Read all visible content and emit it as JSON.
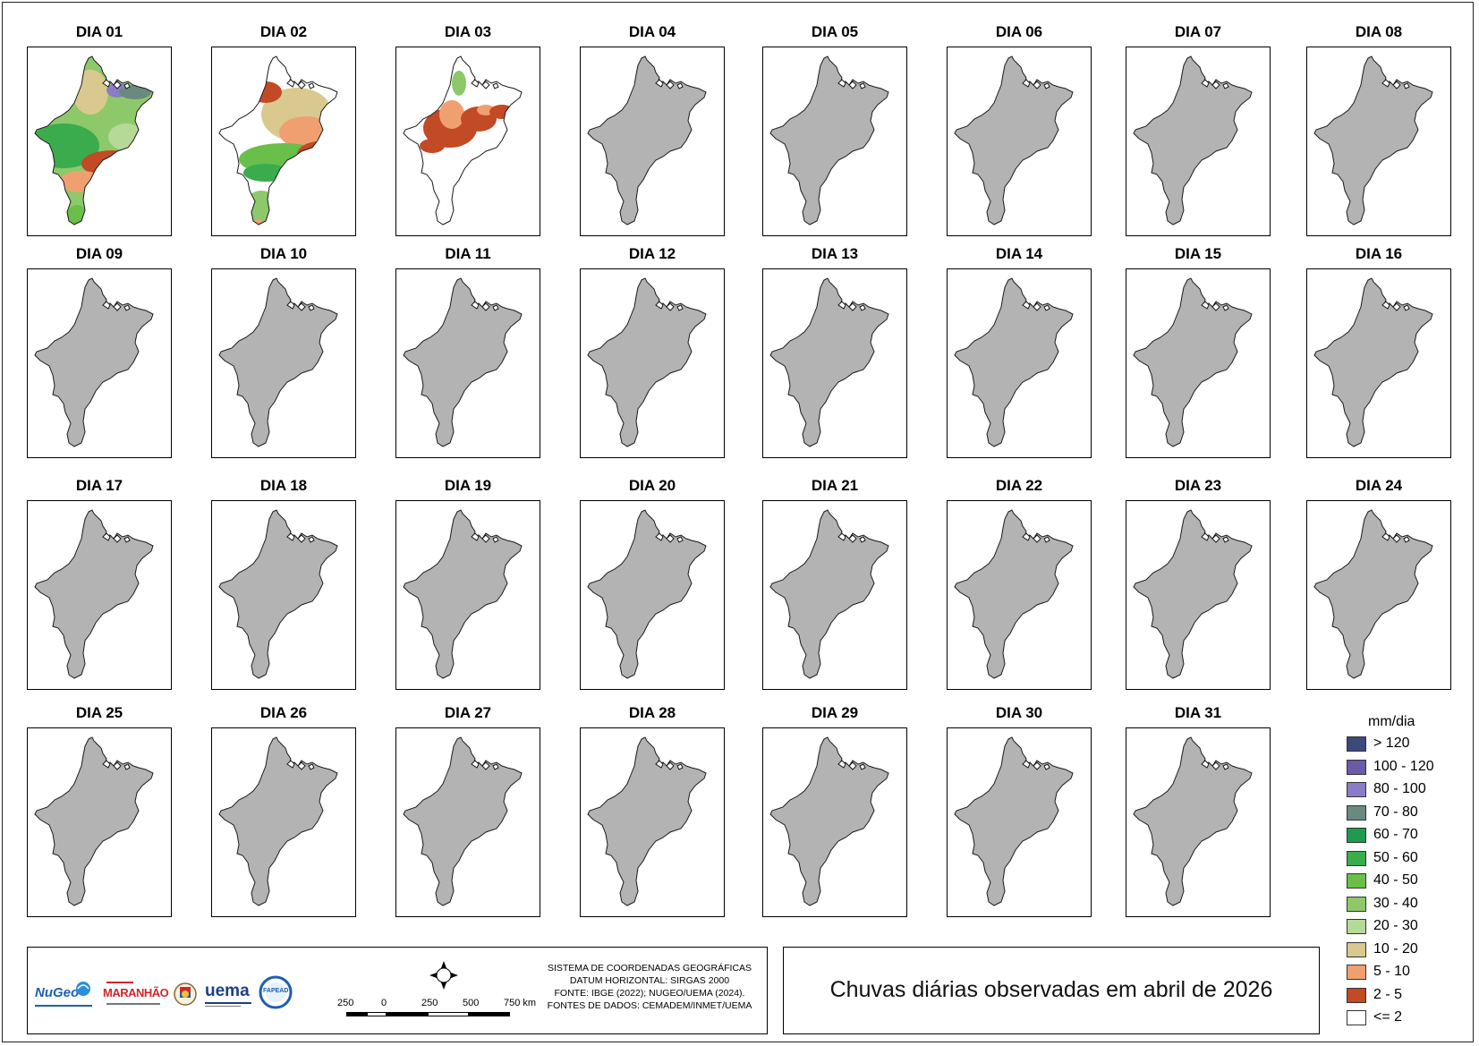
{
  "panels": [
    {
      "label": "DIA 01",
      "status": "data"
    },
    {
      "label": "DIA 02",
      "status": "data"
    },
    {
      "label": "DIA 03",
      "status": "data"
    },
    {
      "label": "DIA 04",
      "status": "nodata"
    },
    {
      "label": "DIA 05",
      "status": "nodata"
    },
    {
      "label": "DIA 06",
      "status": "nodata"
    },
    {
      "label": "DIA 07",
      "status": "nodata"
    },
    {
      "label": "DIA 08",
      "status": "nodata"
    },
    {
      "label": "DIA 09",
      "status": "nodata"
    },
    {
      "label": "DIA 10",
      "status": "nodata"
    },
    {
      "label": "DIA 11",
      "status": "nodata"
    },
    {
      "label": "DIA 12",
      "status": "nodata"
    },
    {
      "label": "DIA 13",
      "status": "nodata"
    },
    {
      "label": "DIA 14",
      "status": "nodata"
    },
    {
      "label": "DIA 15",
      "status": "nodata"
    },
    {
      "label": "DIA 16",
      "status": "nodata"
    },
    {
      "label": "DIA 17",
      "status": "nodata"
    },
    {
      "label": "DIA 18",
      "status": "nodata"
    },
    {
      "label": "DIA 19",
      "status": "nodata"
    },
    {
      "label": "DIA 20",
      "status": "nodata"
    },
    {
      "label": "DIA 21",
      "status": "nodata"
    },
    {
      "label": "DIA 22",
      "status": "nodata"
    },
    {
      "label": "DIA 23",
      "status": "nodata"
    },
    {
      "label": "DIA 24",
      "status": "nodata"
    },
    {
      "label": "DIA 25",
      "status": "nodata"
    },
    {
      "label": "DIA 26",
      "status": "nodata"
    },
    {
      "label": "DIA 27",
      "status": "nodata"
    },
    {
      "label": "DIA 28",
      "status": "nodata"
    },
    {
      "label": "DIA 29",
      "status": "nodata"
    },
    {
      "label": "DIA 30",
      "status": "nodata"
    },
    {
      "label": "DIA 31",
      "status": "nodata"
    }
  ],
  "colors": {
    "no_data_fill": "#b3b3b3",
    "outline": "#1a1a1a"
  },
  "legend": {
    "title": "mm/dia",
    "items": [
      {
        "label": "> 120",
        "color": "#3b4a7a"
      },
      {
        "label": "100 - 120",
        "color": "#6a5aa8"
      },
      {
        "label": "80 - 100",
        "color": "#8a7cc6"
      },
      {
        "label": "70 - 80",
        "color": "#6a8a80"
      },
      {
        "label": "60 - 70",
        "color": "#1f9a4f"
      },
      {
        "label": "50 - 60",
        "color": "#3aac4e"
      },
      {
        "label": "40 - 50",
        "color": "#6abf4b"
      },
      {
        "label": "30 - 40",
        "color": "#8dc96a"
      },
      {
        "label": "20 - 30",
        "color": "#b5d996"
      },
      {
        "label": "10 - 20",
        "color": "#d9c98e"
      },
      {
        "label": "5 - 10",
        "color": "#f0a070"
      },
      {
        "label": "2 - 5",
        "color": "#c24a24"
      },
      {
        "label": "<= 2",
        "color": "#ffffff"
      }
    ]
  },
  "footer": {
    "credits": [
      "SISTEMA DE COORDENADAS GEOGRÁFICAS",
      "DATUM HORIZONTAL: SIRGAS 2000",
      "FONTE: IBGE (2022); NUGEO/UEMA (2024).",
      "FONTES DE DADOS: CEMADEM/INMET/UEMA"
    ],
    "scale_labels": [
      "250",
      "0",
      "250",
      "500",
      "750 km"
    ],
    "logos": {
      "nugeo": "NuGeo",
      "maranhao": "MARANHÃO",
      "uema": "uema",
      "fapead": "FAPEAD"
    }
  },
  "map_title": "Chuvas diárias observadas em abril de 2026"
}
